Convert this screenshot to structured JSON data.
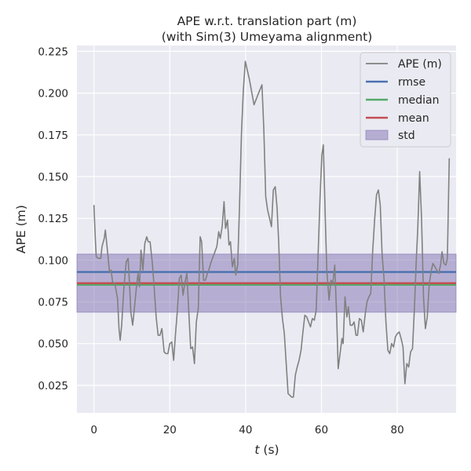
{
  "chart_data": {
    "type": "line",
    "title": "APE w.r.t. translation part (m)",
    "subtitle": "(with Sim(3) Umeyama alignment)",
    "xlabel_italic": "t",
    "xlabel_unit": " (s)",
    "ylabel": "APE (m)",
    "xlim": [
      -4.5,
      95.5
    ],
    "ylim": [
      0.0085,
      0.2285
    ],
    "x_ticks": [
      0,
      20,
      40,
      60,
      80
    ],
    "y_ticks": [
      0.025,
      0.05,
      0.075,
      0.1,
      0.125,
      0.15,
      0.175,
      0.2,
      0.225
    ],
    "y_tick_labels": [
      "0.025",
      "0.050",
      "0.075",
      "0.100",
      "0.125",
      "0.150",
      "0.175",
      "0.200",
      "0.225"
    ],
    "grid": true,
    "legend_position": "top-right",
    "series": [
      {
        "name": "APE (m)",
        "color": "#808080",
        "points": [
          [
            0.0,
            0.133
          ],
          [
            0.3,
            0.115
          ],
          [
            0.6,
            0.102
          ],
          [
            1.2,
            0.101
          ],
          [
            1.8,
            0.101
          ],
          [
            2.1,
            0.108
          ],
          [
            2.7,
            0.113
          ],
          [
            3.0,
            0.118
          ],
          [
            3.5,
            0.107
          ],
          [
            4.1,
            0.093
          ],
          [
            4.5,
            0.094
          ],
          [
            4.9,
            0.087
          ],
          [
            5.5,
            0.086
          ],
          [
            6.2,
            0.077
          ],
          [
            6.6,
            0.059
          ],
          [
            6.9,
            0.052
          ],
          [
            7.3,
            0.061
          ],
          [
            7.9,
            0.084
          ],
          [
            8.5,
            0.099
          ],
          [
            9.0,
            0.101
          ],
          [
            9.4,
            0.085
          ],
          [
            9.7,
            0.069
          ],
          [
            10.2,
            0.061
          ],
          [
            10.7,
            0.072
          ],
          [
            11.2,
            0.084
          ],
          [
            11.6,
            0.092
          ],
          [
            12.0,
            0.084
          ],
          [
            12.4,
            0.106
          ],
          [
            12.9,
            0.094
          ],
          [
            13.4,
            0.11
          ],
          [
            13.9,
            0.114
          ],
          [
            14.3,
            0.111
          ],
          [
            14.8,
            0.111
          ],
          [
            15.4,
            0.098
          ],
          [
            15.9,
            0.083
          ],
          [
            16.4,
            0.066
          ],
          [
            16.9,
            0.055
          ],
          [
            17.4,
            0.055
          ],
          [
            17.9,
            0.059
          ],
          [
            18.5,
            0.045
          ],
          [
            19.0,
            0.044
          ],
          [
            19.5,
            0.044
          ],
          [
            20.0,
            0.05
          ],
          [
            20.5,
            0.051
          ],
          [
            21.0,
            0.04
          ],
          [
            21.5,
            0.056
          ],
          [
            22.0,
            0.07
          ],
          [
            22.5,
            0.089
          ],
          [
            23.0,
            0.091
          ],
          [
            23.5,
            0.079
          ],
          [
            24.0,
            0.087
          ],
          [
            24.5,
            0.092
          ],
          [
            25.0,
            0.069
          ],
          [
            25.5,
            0.047
          ],
          [
            26.0,
            0.048
          ],
          [
            26.5,
            0.038
          ],
          [
            27.0,
            0.063
          ],
          [
            27.5,
            0.071
          ],
          [
            28.0,
            0.114
          ],
          [
            28.4,
            0.111
          ],
          [
            28.9,
            0.088
          ],
          [
            29.4,
            0.088
          ],
          [
            29.9,
            0.092
          ],
          [
            30.4,
            0.095
          ],
          [
            30.9,
            0.099
          ],
          [
            31.4,
            0.102
          ],
          [
            31.9,
            0.105
          ],
          [
            32.4,
            0.108
          ],
          [
            32.9,
            0.117
          ],
          [
            33.3,
            0.113
          ],
          [
            33.8,
            0.12
          ],
          [
            34.3,
            0.135
          ],
          [
            34.7,
            0.119
          ],
          [
            35.2,
            0.124
          ],
          [
            35.6,
            0.109
          ],
          [
            36.0,
            0.111
          ],
          [
            36.5,
            0.096
          ],
          [
            37.0,
            0.101
          ],
          [
            37.4,
            0.091
          ],
          [
            37.9,
            0.097
          ],
          [
            38.4,
            0.134
          ],
          [
            38.9,
            0.176
          ],
          [
            39.4,
            0.202
          ],
          [
            39.9,
            0.219
          ],
          [
            41.0,
            0.208
          ],
          [
            42.2,
            0.193
          ],
          [
            43.4,
            0.2
          ],
          [
            44.3,
            0.205
          ],
          [
            44.8,
            0.178
          ],
          [
            45.3,
            0.138
          ],
          [
            45.8,
            0.13
          ],
          [
            46.3,
            0.125
          ],
          [
            46.8,
            0.12
          ],
          [
            47.3,
            0.142
          ],
          [
            47.8,
            0.144
          ],
          [
            48.3,
            0.131
          ],
          [
            48.7,
            0.111
          ],
          [
            49.2,
            0.078
          ],
          [
            49.7,
            0.065
          ],
          [
            50.2,
            0.056
          ],
          [
            50.7,
            0.038
          ],
          [
            51.2,
            0.02
          ],
          [
            51.7,
            0.019
          ],
          [
            52.1,
            0.018
          ],
          [
            52.6,
            0.018
          ],
          [
            53.1,
            0.031
          ],
          [
            53.6,
            0.036
          ],
          [
            54.1,
            0.04
          ],
          [
            54.6,
            0.046
          ],
          [
            55.1,
            0.057
          ],
          [
            55.6,
            0.067
          ],
          [
            56.1,
            0.066
          ],
          [
            56.6,
            0.063
          ],
          [
            57.1,
            0.06
          ],
          [
            57.6,
            0.065
          ],
          [
            58.1,
            0.064
          ],
          [
            58.6,
            0.07
          ],
          [
            59.1,
            0.103
          ],
          [
            59.6,
            0.136
          ],
          [
            60.1,
            0.163
          ],
          [
            60.5,
            0.169
          ],
          [
            61.0,
            0.125
          ],
          [
            61.4,
            0.094
          ],
          [
            62.0,
            0.076
          ],
          [
            62.5,
            0.088
          ],
          [
            63.0,
            0.086
          ],
          [
            63.5,
            0.097
          ],
          [
            64.0,
            0.066
          ],
          [
            64.4,
            0.035
          ],
          [
            64.9,
            0.044
          ],
          [
            65.4,
            0.053
          ],
          [
            65.7,
            0.05
          ],
          [
            66.2,
            0.078
          ],
          [
            66.7,
            0.066
          ],
          [
            67.1,
            0.072
          ],
          [
            67.6,
            0.061
          ],
          [
            68.1,
            0.061
          ],
          [
            68.6,
            0.063
          ],
          [
            69.1,
            0.055
          ],
          [
            69.5,
            0.055
          ],
          [
            70.0,
            0.065
          ],
          [
            70.5,
            0.064
          ],
          [
            71.0,
            0.057
          ],
          [
            71.5,
            0.067
          ],
          [
            72.0,
            0.075
          ],
          [
            72.5,
            0.078
          ],
          [
            73.0,
            0.08
          ],
          [
            73.5,
            0.105
          ],
          [
            74.0,
            0.124
          ],
          [
            74.5,
            0.139
          ],
          [
            75.0,
            0.142
          ],
          [
            75.5,
            0.133
          ],
          [
            76.0,
            0.103
          ],
          [
            76.5,
            0.089
          ],
          [
            77.0,
            0.063
          ],
          [
            77.5,
            0.046
          ],
          [
            78.0,
            0.044
          ],
          [
            78.5,
            0.05
          ],
          [
            79.0,
            0.048
          ],
          [
            79.5,
            0.054
          ],
          [
            80.0,
            0.056
          ],
          [
            80.5,
            0.057
          ],
          [
            81.0,
            0.053
          ],
          [
            81.5,
            0.048
          ],
          [
            82.0,
            0.026
          ],
          [
            82.5,
            0.038
          ],
          [
            83.0,
            0.036
          ],
          [
            83.5,
            0.045
          ],
          [
            84.0,
            0.047
          ],
          [
            84.5,
            0.071
          ],
          [
            85.0,
            0.1
          ],
          [
            85.4,
            0.119
          ],
          [
            85.9,
            0.153
          ],
          [
            86.4,
            0.125
          ],
          [
            86.9,
            0.078
          ],
          [
            87.4,
            0.059
          ],
          [
            87.9,
            0.066
          ],
          [
            88.4,
            0.085
          ],
          [
            88.9,
            0.093
          ],
          [
            89.4,
            0.098
          ],
          [
            89.9,
            0.096
          ],
          [
            90.4,
            0.094
          ],
          [
            90.9,
            0.092
          ],
          [
            91.4,
            0.097
          ],
          [
            91.8,
            0.105
          ],
          [
            92.3,
            0.098
          ],
          [
            92.8,
            0.097
          ],
          [
            93.2,
            0.101
          ],
          [
            93.7,
            0.161
          ]
        ]
      },
      {
        "name": "rmse",
        "color": "#4c72b0",
        "value": 0.0929
      },
      {
        "name": "median",
        "color": "#55a868",
        "value": 0.0852
      },
      {
        "name": "mean",
        "color": "#c44e52",
        "value": 0.0862
      }
    ],
    "std_band": {
      "name": "std",
      "color": "#8172b2",
      "lower": 0.0688,
      "upper": 0.1036
    },
    "colors": {
      "figure_background": "#ffffff",
      "axes_background": "#eaeaf2",
      "grid": "#ffffff",
      "legend_background": "#eaeaf2",
      "legend_border": "#cccccc"
    }
  }
}
